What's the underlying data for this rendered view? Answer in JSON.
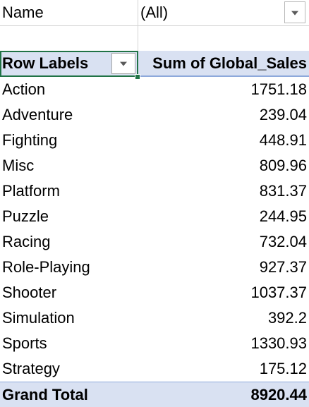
{
  "filter": {
    "field": "Name",
    "value": "(All)"
  },
  "pivot": {
    "row_header": "Row Labels",
    "value_header": "Sum of Global_Sales",
    "rows": [
      {
        "label": "Action",
        "value": "1751.18"
      },
      {
        "label": "Adventure",
        "value": "239.04"
      },
      {
        "label": "Fighting",
        "value": "448.91"
      },
      {
        "label": "Misc",
        "value": "809.96"
      },
      {
        "label": "Platform",
        "value": "831.37"
      },
      {
        "label": "Puzzle",
        "value": "244.95"
      },
      {
        "label": "Racing",
        "value": "732.04"
      },
      {
        "label": "Role-Playing",
        "value": "927.37"
      },
      {
        "label": "Shooter",
        "value": "1037.37"
      },
      {
        "label": "Simulation",
        "value": "392.2"
      },
      {
        "label": "Sports",
        "value": "1330.93"
      },
      {
        "label": "Strategy",
        "value": "175.12"
      }
    ],
    "grand_total_label": "Grand Total",
    "grand_total_value": "8920.44"
  },
  "colors": {
    "header_fill": "#d9e1f2",
    "header_border": "#8ea9db",
    "selection": "#217346"
  },
  "icons": {
    "filter_dropdown": "dropdown-arrow-icon",
    "row_labels_dropdown": "dropdown-arrow-icon"
  }
}
